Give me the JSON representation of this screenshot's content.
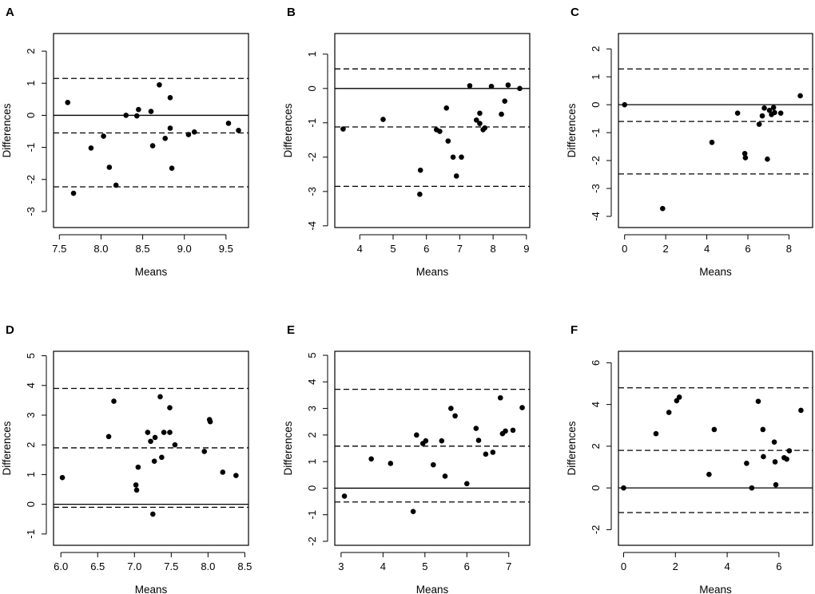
{
  "figure": {
    "description_free": true,
    "chart_data": [
      {
        "type": "scatter",
        "panel": "A",
        "xlabel": "Means",
        "ylabel": "Differences",
        "xlim": [
          7.43,
          9.77
        ],
        "ylim": [
          -3.5,
          2.55
        ],
        "xticks": [
          7.5,
          8.0,
          8.5,
          9.0,
          9.5
        ],
        "xtick_labels": [
          "7.5",
          "8.0",
          "8.5",
          "9.0",
          "9.5"
        ],
        "yticks": [
          -3,
          -2,
          -1,
          0,
          1,
          2
        ],
        "ytick_labels": [
          "-3",
          "-2",
          "-1",
          "0",
          "1",
          "2"
        ],
        "reference_lines": [
          {
            "y": 1.15,
            "style": "dashed"
          },
          {
            "y": 0,
            "style": "solid"
          },
          {
            "y": -0.55,
            "style": "dashed"
          },
          {
            "y": -2.23,
            "style": "dashed"
          }
        ],
        "points": [
          [
            7.6,
            0.4
          ],
          [
            7.67,
            -2.43
          ],
          [
            7.88,
            -1.02
          ],
          [
            8.03,
            -0.65
          ],
          [
            8.1,
            -1.62
          ],
          [
            8.18,
            -2.18
          ],
          [
            8.3,
            0.0
          ],
          [
            8.43,
            -0.02
          ],
          [
            8.45,
            0.18
          ],
          [
            8.6,
            0.12
          ],
          [
            8.62,
            -0.95
          ],
          [
            8.7,
            0.95
          ],
          [
            8.77,
            -0.72
          ],
          [
            8.83,
            0.55
          ],
          [
            8.83,
            -0.4
          ],
          [
            8.85,
            -1.65
          ],
          [
            9.05,
            -0.6
          ],
          [
            9.12,
            -0.52
          ],
          [
            9.53,
            -0.25
          ],
          [
            9.65,
            -0.47
          ]
        ]
      },
      {
        "type": "scatter",
        "panel": "B",
        "xlabel": "Means",
        "ylabel": "Differences",
        "xlim": [
          3.25,
          9.1
        ],
        "ylim": [
          -4.05,
          1.6
        ],
        "xticks": [
          4,
          5,
          6,
          7,
          8,
          9
        ],
        "xtick_labels": [
          "4",
          "5",
          "6",
          "7",
          "8",
          "9"
        ],
        "yticks": [
          -4,
          -3,
          -2,
          -1,
          0,
          1
        ],
        "ytick_labels": [
          "-4",
          "-3",
          "-2",
          "-1",
          "0",
          "1"
        ],
        "reference_lines": [
          {
            "y": 0.57,
            "style": "dashed"
          },
          {
            "y": 0,
            "style": "solid"
          },
          {
            "y": -1.12,
            "style": "dashed"
          },
          {
            "y": -2.85,
            "style": "dashed"
          }
        ],
        "points": [
          [
            3.5,
            -1.18
          ],
          [
            4.7,
            -0.9
          ],
          [
            5.8,
            -3.08
          ],
          [
            5.82,
            -2.38
          ],
          [
            6.3,
            -1.2
          ],
          [
            6.4,
            -1.25
          ],
          [
            6.6,
            -0.57
          ],
          [
            6.65,
            -1.53
          ],
          [
            6.8,
            -2.0
          ],
          [
            6.9,
            -2.55
          ],
          [
            7.05,
            -2.0
          ],
          [
            7.3,
            0.08
          ],
          [
            7.5,
            -0.92
          ],
          [
            7.6,
            -1.02
          ],
          [
            7.6,
            -0.72
          ],
          [
            7.7,
            -1.2
          ],
          [
            7.75,
            -1.15
          ],
          [
            7.95,
            0.06
          ],
          [
            8.25,
            -0.75
          ],
          [
            8.35,
            -0.37
          ],
          [
            8.45,
            0.1
          ],
          [
            8.8,
            0.0
          ]
        ]
      },
      {
        "type": "scatter",
        "panel": "C",
        "xlabel": "Means",
        "ylabel": "Differences",
        "xlim": [
          -0.3,
          9.15
        ],
        "ylim": [
          -4.4,
          2.55
        ],
        "xticks": [
          0,
          2,
          4,
          6,
          8
        ],
        "xtick_labels": [
          "0",
          "2",
          "4",
          "6",
          "8"
        ],
        "yticks": [
          -4,
          -3,
          -2,
          -1,
          0,
          1,
          2
        ],
        "ytick_labels": [
          "-4",
          "-3",
          "-2",
          "-1",
          "0",
          "1",
          "2"
        ],
        "reference_lines": [
          {
            "y": 1.28,
            "style": "dashed"
          },
          {
            "y": 0,
            "style": "solid"
          },
          {
            "y": -0.6,
            "style": "dashed"
          },
          {
            "y": -2.48,
            "style": "dashed"
          }
        ],
        "points": [
          [
            0.0,
            0.0
          ],
          [
            1.85,
            -3.72
          ],
          [
            4.25,
            -1.35
          ],
          [
            5.5,
            -0.3
          ],
          [
            5.85,
            -1.75
          ],
          [
            5.88,
            -1.9
          ],
          [
            6.55,
            -0.7
          ],
          [
            6.7,
            -0.4
          ],
          [
            6.8,
            -0.12
          ],
          [
            6.95,
            -1.95
          ],
          [
            7.05,
            -0.2
          ],
          [
            7.15,
            -0.35
          ],
          [
            7.25,
            -0.1
          ],
          [
            7.3,
            -0.28
          ],
          [
            7.6,
            -0.3
          ],
          [
            8.55,
            0.32
          ]
        ]
      },
      {
        "type": "scatter",
        "panel": "D",
        "xlabel": "Means",
        "ylabel": "Differences",
        "xlim": [
          5.9,
          8.55
        ],
        "ylim": [
          -1.38,
          5.15
        ],
        "xticks": [
          6.0,
          6.5,
          7.0,
          7.5,
          8.0,
          8.5
        ],
        "xtick_labels": [
          "6.0",
          "6.5",
          "7.0",
          "7.5",
          "8.0",
          "8.5"
        ],
        "yticks": [
          -1,
          0,
          1,
          2,
          3,
          4,
          5
        ],
        "ytick_labels": [
          "-1",
          "0",
          "1",
          "2",
          "3",
          "4",
          "5"
        ],
        "reference_lines": [
          {
            "y": 3.9,
            "style": "dashed"
          },
          {
            "y": 1.9,
            "style": "dashed"
          },
          {
            "y": 0,
            "style": "solid"
          },
          {
            "y": -0.1,
            "style": "dashed"
          }
        ],
        "points": [
          [
            6.02,
            0.9
          ],
          [
            6.65,
            2.28
          ],
          [
            6.72,
            3.47
          ],
          [
            7.02,
            0.65
          ],
          [
            7.03,
            0.48
          ],
          [
            7.05,
            1.25
          ],
          [
            7.18,
            2.42
          ],
          [
            7.22,
            2.12
          ],
          [
            7.25,
            -0.33
          ],
          [
            7.27,
            1.45
          ],
          [
            7.28,
            2.25
          ],
          [
            7.35,
            3.62
          ],
          [
            7.37,
            1.58
          ],
          [
            7.4,
            2.42
          ],
          [
            7.48,
            2.42
          ],
          [
            7.48,
            3.25
          ],
          [
            7.55,
            2.0
          ],
          [
            7.95,
            1.78
          ],
          [
            8.02,
            2.85
          ],
          [
            8.03,
            2.78
          ],
          [
            8.2,
            1.08
          ],
          [
            8.38,
            0.97
          ]
        ]
      },
      {
        "type": "scatter",
        "panel": "E",
        "xlabel": "Means",
        "ylabel": "Differences",
        "xlim": [
          2.85,
          7.5
        ],
        "ylim": [
          -2.15,
          5.15
        ],
        "xticks": [
          3,
          4,
          5,
          6,
          7
        ],
        "xtick_labels": [
          "3",
          "4",
          "5",
          "6",
          "7"
        ],
        "yticks": [
          -2,
          -1,
          0,
          1,
          2,
          3,
          4,
          5
        ],
        "ytick_labels": [
          "-2",
          "-1",
          "0",
          "1",
          "2",
          "3",
          "4",
          "5"
        ],
        "reference_lines": [
          {
            "y": 3.72,
            "style": "dashed"
          },
          {
            "y": 1.58,
            "style": "dashed"
          },
          {
            "y": 0,
            "style": "solid"
          },
          {
            "y": -0.52,
            "style": "dashed"
          }
        ],
        "points": [
          [
            3.08,
            -0.3
          ],
          [
            3.72,
            1.1
          ],
          [
            4.18,
            0.93
          ],
          [
            4.72,
            -0.88
          ],
          [
            4.8,
            2.0
          ],
          [
            4.95,
            1.68
          ],
          [
            5.02,
            1.78
          ],
          [
            5.2,
            0.88
          ],
          [
            5.4,
            1.78
          ],
          [
            5.48,
            0.45
          ],
          [
            5.62,
            3.0
          ],
          [
            5.72,
            2.72
          ],
          [
            6.0,
            0.17
          ],
          [
            6.22,
            2.25
          ],
          [
            6.28,
            1.8
          ],
          [
            6.45,
            1.28
          ],
          [
            6.62,
            1.35
          ],
          [
            6.8,
            3.4
          ],
          [
            6.85,
            2.05
          ],
          [
            6.92,
            2.15
          ],
          [
            7.1,
            2.18
          ],
          [
            7.32,
            3.03
          ]
        ]
      },
      {
        "type": "scatter",
        "panel": "F",
        "xlabel": "Means",
        "ylabel": "Differences",
        "xlim": [
          -0.2,
          7.3
        ],
        "ylim": [
          -2.75,
          6.55
        ],
        "xticks": [
          0,
          2,
          4,
          6
        ],
        "xtick_labels": [
          "0",
          "2",
          "4",
          "6"
        ],
        "yticks": [
          -2,
          0,
          2,
          4,
          6
        ],
        "ytick_labels": [
          "-2",
          "0",
          "2",
          "4",
          "6"
        ],
        "reference_lines": [
          {
            "y": 4.8,
            "style": "dashed"
          },
          {
            "y": 1.8,
            "style": "dashed"
          },
          {
            "y": 0,
            "style": "solid"
          },
          {
            "y": -1.18,
            "style": "dashed"
          }
        ],
        "points": [
          [
            0.0,
            0.0
          ],
          [
            1.25,
            2.6
          ],
          [
            1.75,
            3.62
          ],
          [
            2.05,
            4.18
          ],
          [
            2.15,
            4.35
          ],
          [
            3.3,
            0.65
          ],
          [
            3.5,
            2.8
          ],
          [
            4.75,
            1.18
          ],
          [
            4.95,
            0.0
          ],
          [
            5.2,
            4.15
          ],
          [
            5.38,
            2.8
          ],
          [
            5.4,
            1.5
          ],
          [
            5.82,
            2.2
          ],
          [
            5.85,
            1.25
          ],
          [
            5.88,
            0.15
          ],
          [
            6.2,
            1.45
          ],
          [
            6.3,
            1.38
          ],
          [
            6.4,
            1.78
          ],
          [
            6.85,
            3.72
          ]
        ]
      }
    ]
  }
}
